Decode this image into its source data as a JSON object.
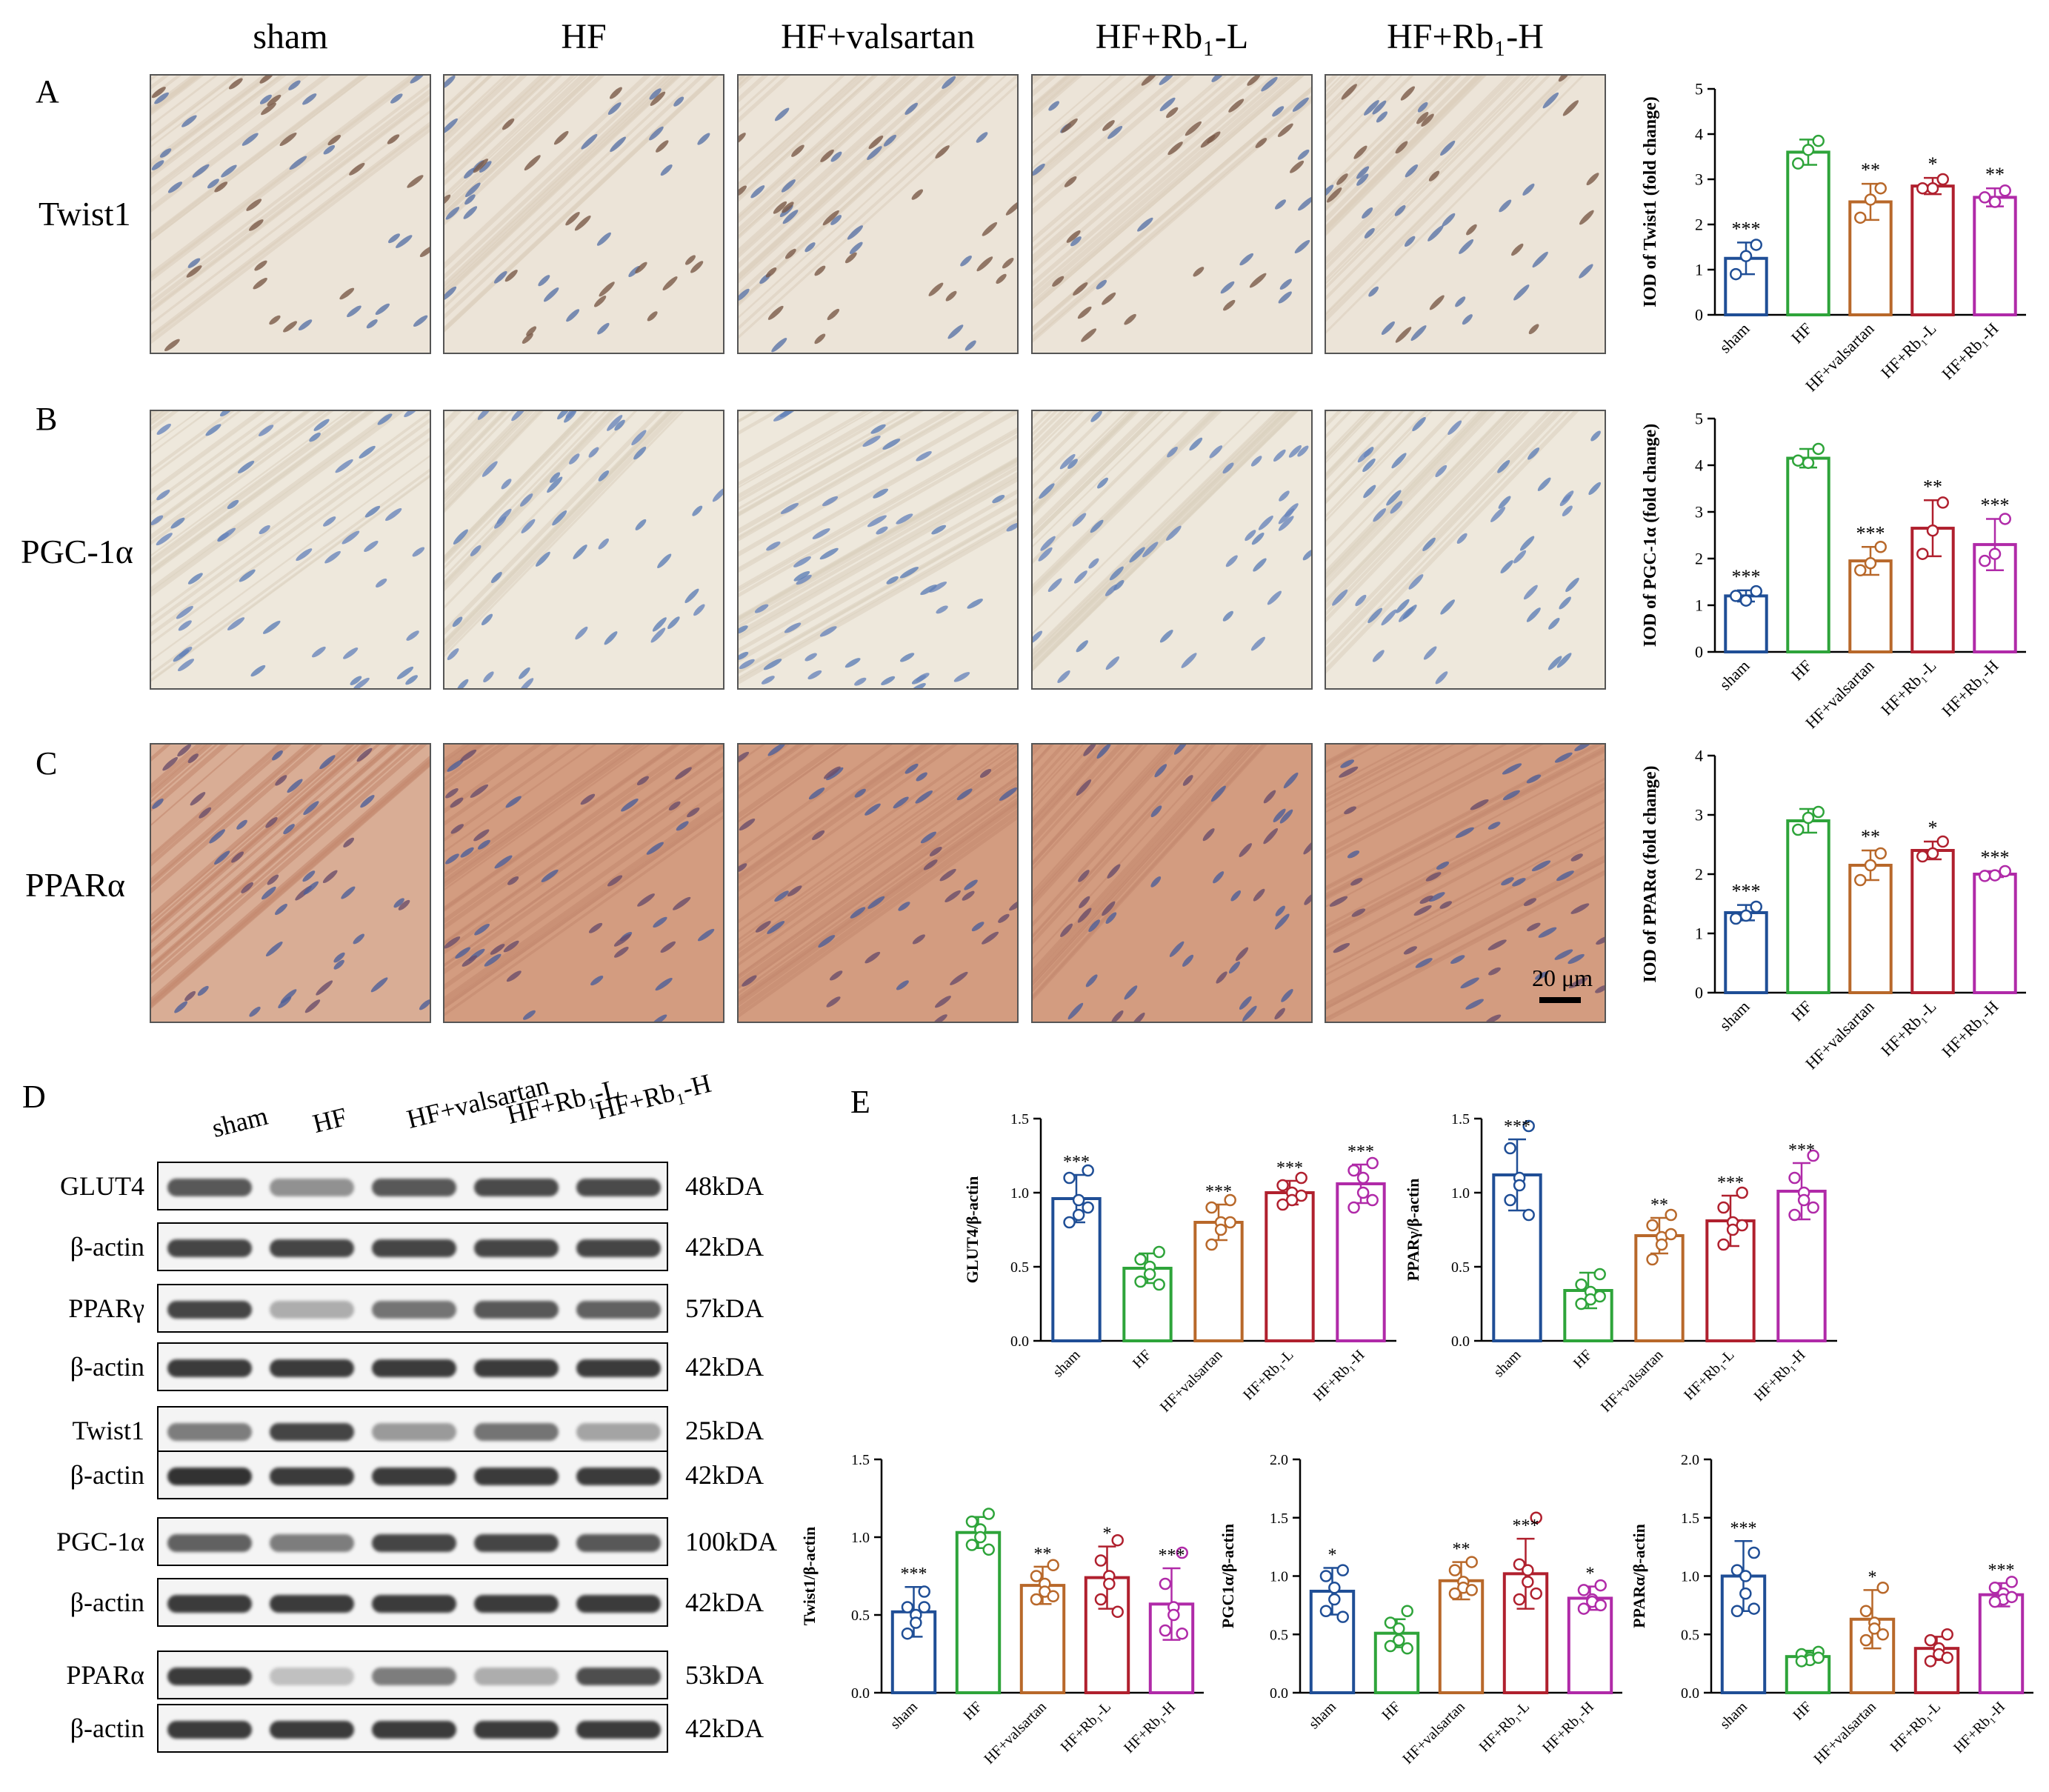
{
  "panel_letters": {
    "A": "A",
    "B": "B",
    "C": "C",
    "D": "D",
    "E": "E"
  },
  "groups": [
    "sham",
    "HF",
    "HF+valsartan",
    "HF+Rb₁-L",
    "HF+Rb₁-H"
  ],
  "group_tick_labels": [
    "sham",
    "HF",
    "HF+valsartan",
    "HF+Rb₁-L",
    "HF+Rb₁-H"
  ],
  "group_colors": [
    "#1f4e96",
    "#2ea43a",
    "#b8682a",
    "#b0202e",
    "#b02aa8"
  ],
  "ihc_rows": [
    {
      "marker": "Twist1",
      "stain": "light-brown-nuclei"
    },
    {
      "marker": "PGC-1α",
      "stain": "light-brown"
    },
    {
      "marker": "PPARα",
      "stain": "strong-brown"
    }
  ],
  "scale_bar": {
    "label": "20 μm"
  },
  "western_blot": {
    "lanes": [
      "sham",
      "HF",
      "HF+valsartan",
      "HF+Rb₁-L",
      "HF+Rb₁-H"
    ],
    "bands": [
      {
        "label": "GLUT4",
        "kda": "48kDA",
        "intensity": [
          0.75,
          0.45,
          0.75,
          0.82,
          0.82
        ]
      },
      {
        "label": "β-actin",
        "kda": "42kDA",
        "intensity": [
          0.85,
          0.85,
          0.85,
          0.85,
          0.85
        ]
      },
      {
        "label": "PPARγ",
        "kda": "57kDA",
        "intensity": [
          0.85,
          0.3,
          0.6,
          0.75,
          0.7
        ]
      },
      {
        "label": "β-actin",
        "kda": "42kDA",
        "intensity": [
          0.9,
          0.9,
          0.9,
          0.9,
          0.9
        ]
      },
      {
        "label": "Twist1",
        "kda": "25kDA",
        "intensity": [
          0.55,
          0.85,
          0.4,
          0.6,
          0.35
        ]
      },
      {
        "label": "β-actin",
        "kda": "42kDA",
        "intensity": [
          0.95,
          0.9,
          0.9,
          0.9,
          0.9
        ]
      },
      {
        "label": "PGC-1α",
        "kda": "100kDA",
        "intensity": [
          0.7,
          0.55,
          0.85,
          0.85,
          0.75
        ]
      },
      {
        "label": "β-actin",
        "kda": "42kDA",
        "intensity": [
          0.9,
          0.9,
          0.9,
          0.9,
          0.9
        ]
      },
      {
        "label": "PPARα",
        "kda": "53kDA",
        "intensity": [
          0.9,
          0.2,
          0.55,
          0.3,
          0.8
        ]
      },
      {
        "label": "β-actin",
        "kda": "42kDA",
        "intensity": [
          0.9,
          0.9,
          0.9,
          0.9,
          0.9
        ]
      }
    ]
  },
  "chart_data": [
    {
      "type": "bar",
      "ylabel": "IOD of Twist1 (fold change)",
      "ylim": [
        0,
        5
      ],
      "yticks": [
        0,
        1,
        2,
        3,
        4,
        5
      ],
      "categories": [
        "sham",
        "HF",
        "HF+valsartan",
        "HF+Rb₁-L",
        "HF+Rb₁-H"
      ],
      "values": [
        1.25,
        3.6,
        2.5,
        2.85,
        2.6
      ],
      "sd": [
        0.35,
        0.28,
        0.4,
        0.18,
        0.2
      ],
      "points": [
        [
          1.55,
          1.3,
          0.9
        ],
        [
          3.85,
          3.65,
          3.35
        ],
        [
          2.8,
          2.55,
          2.15
        ],
        [
          3.0,
          2.8,
          2.8
        ],
        [
          2.75,
          2.5,
          2.6
        ]
      ],
      "significance": [
        "***",
        "",
        "**",
        "*",
        "**"
      ]
    },
    {
      "type": "bar",
      "ylabel": "IOD of PGC-1α (fold change)",
      "ylim": [
        0,
        5
      ],
      "yticks": [
        0,
        1,
        2,
        3,
        4,
        5
      ],
      "categories": [
        "sham",
        "HF",
        "HF+valsartan",
        "HF+Rb₁-L",
        "HF+Rb₁-H"
      ],
      "values": [
        1.2,
        4.15,
        1.95,
        2.65,
        2.3
      ],
      "sd": [
        0.12,
        0.2,
        0.3,
        0.6,
        0.55
      ],
      "points": [
        [
          1.3,
          1.1,
          1.2
        ],
        [
          4.35,
          4.05,
          4.1
        ],
        [
          2.25,
          1.9,
          1.75
        ],
        [
          3.2,
          2.6,
          2.1
        ],
        [
          2.85,
          2.1,
          1.95
        ]
      ],
      "significance": [
        "***",
        "",
        "***",
        "**",
        "***"
      ]
    },
    {
      "type": "bar",
      "ylabel": "IOD of PPARα (fold change)",
      "ylim": [
        0,
        4
      ],
      "yticks": [
        0,
        1,
        2,
        3,
        4
      ],
      "categories": [
        "sham",
        "HF",
        "HF+valsartan",
        "HF+Rb₁-L",
        "HF+Rb₁-H"
      ],
      "values": [
        1.35,
        2.9,
        2.15,
        2.4,
        2.0
      ],
      "sd": [
        0.13,
        0.2,
        0.25,
        0.15,
        0.05
      ],
      "points": [
        [
          1.45,
          1.3,
          1.25
        ],
        [
          3.05,
          2.95,
          2.75
        ],
        [
          2.35,
          2.15,
          1.9
        ],
        [
          2.55,
          2.35,
          2.3
        ],
        [
          2.05,
          1.98,
          1.97
        ]
      ],
      "significance": [
        "***",
        "",
        "**",
        "*",
        "***"
      ]
    },
    {
      "type": "bar",
      "ylabel": "GLUT4/β-actin",
      "ylim": [
        0,
        1.5
      ],
      "yticks": [
        0.0,
        0.5,
        1.0,
        1.5
      ],
      "categories": [
        "sham",
        "HF",
        "HF+valsartan",
        "HF+Rb₁-L",
        "HF+Rb₁-H"
      ],
      "values": [
        0.96,
        0.49,
        0.8,
        1.0,
        1.06
      ],
      "sd": [
        0.16,
        0.1,
        0.12,
        0.08,
        0.13
      ],
      "points": [
        [
          1.15,
          1.1,
          0.95,
          0.85,
          0.8,
          0.9
        ],
        [
          0.6,
          0.55,
          0.5,
          0.45,
          0.4,
          0.38
        ],
        [
          0.95,
          0.9,
          0.8,
          0.75,
          0.65,
          0.8
        ],
        [
          1.1,
          1.05,
          1.0,
          0.95,
          0.92,
          0.98
        ],
        [
          1.2,
          1.15,
          1.1,
          1.0,
          0.9,
          0.95
        ]
      ],
      "significance": [
        "***",
        "",
        "***",
        "***",
        "***"
      ]
    },
    {
      "type": "bar",
      "ylabel": "PPARγ/β-actin",
      "ylim": [
        0,
        1.5
      ],
      "yticks": [
        0.0,
        0.5,
        1.0,
        1.5
      ],
      "categories": [
        "sham",
        "HF",
        "HF+valsartan",
        "HF+Rb₁-L",
        "HF+Rb₁-H"
      ],
      "values": [
        1.12,
        0.34,
        0.71,
        0.81,
        1.01
      ],
      "sd": [
        0.24,
        0.12,
        0.12,
        0.17,
        0.19
      ],
      "points": [
        [
          1.45,
          1.3,
          1.1,
          1.05,
          0.95,
          0.85
        ],
        [
          0.45,
          0.38,
          0.33,
          0.28,
          0.25,
          0.3
        ],
        [
          0.85,
          0.78,
          0.7,
          0.65,
          0.55,
          0.72
        ],
        [
          1.0,
          0.9,
          0.8,
          0.75,
          0.65,
          0.78
        ],
        [
          1.25,
          1.1,
          1.0,
          0.95,
          0.85,
          0.9
        ]
      ],
      "significance": [
        "***",
        "",
        "**",
        "***",
        "***"
      ]
    },
    {
      "type": "bar",
      "ylabel": "Twist1/β-actin",
      "ylim": [
        0,
        1.5
      ],
      "yticks": [
        0.0,
        0.5,
        1.0,
        1.5
      ],
      "categories": [
        "sham",
        "HF",
        "HF+valsartan",
        "HF+Rb₁-L",
        "HF+Rb₁-H"
      ],
      "values": [
        0.52,
        1.03,
        0.69,
        0.74,
        0.57
      ],
      "sd": [
        0.16,
        0.1,
        0.12,
        0.2,
        0.23
      ],
      "points": [
        [
          0.65,
          0.55,
          0.5,
          0.45,
          0.38,
          0.55
        ],
        [
          1.15,
          1.1,
          1.05,
          1.0,
          0.95,
          0.92
        ],
        [
          0.82,
          0.75,
          0.7,
          0.65,
          0.6,
          0.62
        ],
        [
          0.98,
          0.85,
          0.75,
          0.7,
          0.6,
          0.52
        ],
        [
          0.9,
          0.7,
          0.55,
          0.5,
          0.4,
          0.38
        ]
      ],
      "significance": [
        "***",
        "",
        "**",
        "*",
        "***"
      ]
    },
    {
      "type": "bar",
      "ylabel": "PGC1α/β-actin",
      "ylim": [
        0,
        2.0
      ],
      "yticks": [
        0.0,
        0.5,
        1.0,
        1.5,
        2.0
      ],
      "categories": [
        "sham",
        "HF",
        "HF+valsartan",
        "HF+Rb₁-L",
        "HF+Rb₁-H"
      ],
      "values": [
        0.87,
        0.51,
        0.96,
        1.02,
        0.81
      ],
      "sd": [
        0.2,
        0.12,
        0.16,
        0.3,
        0.1
      ],
      "points": [
        [
          1.05,
          1.0,
          0.9,
          0.8,
          0.7,
          0.65
        ],
        [
          0.7,
          0.6,
          0.55,
          0.45,
          0.4,
          0.38
        ],
        [
          1.12,
          1.05,
          0.95,
          0.9,
          0.85,
          0.88
        ],
        [
          1.5,
          1.1,
          1.05,
          0.95,
          0.8,
          0.85
        ],
        [
          0.92,
          0.88,
          0.8,
          0.78,
          0.72,
          0.75
        ]
      ],
      "significance": [
        "*",
        "",
        "**",
        "***",
        "*"
      ]
    },
    {
      "type": "bar",
      "ylabel": "PPARα/β-actin",
      "ylim": [
        0,
        2.0
      ],
      "yticks": [
        0.0,
        0.5,
        1.0,
        1.5,
        2.0
      ],
      "categories": [
        "sham",
        "HF",
        "HF+valsartan",
        "HF+Rb₁-L",
        "HF+Rb₁-H"
      ],
      "values": [
        1.0,
        0.31,
        0.63,
        0.38,
        0.84
      ],
      "sd": [
        0.3,
        0.05,
        0.25,
        0.1,
        0.1
      ],
      "points": [
        [
          1.2,
          1.05,
          1.0,
          0.85,
          0.7,
          0.72
        ],
        [
          0.35,
          0.33,
          0.3,
          0.28,
          0.27,
          0.3
        ],
        [
          0.9,
          0.7,
          0.6,
          0.55,
          0.45,
          0.5
        ],
        [
          0.5,
          0.45,
          0.38,
          0.33,
          0.27,
          0.3
        ],
        [
          0.95,
          0.9,
          0.85,
          0.8,
          0.78,
          0.82
        ]
      ],
      "significance": [
        "***",
        "",
        "*",
        "",
        "***"
      ]
    }
  ]
}
